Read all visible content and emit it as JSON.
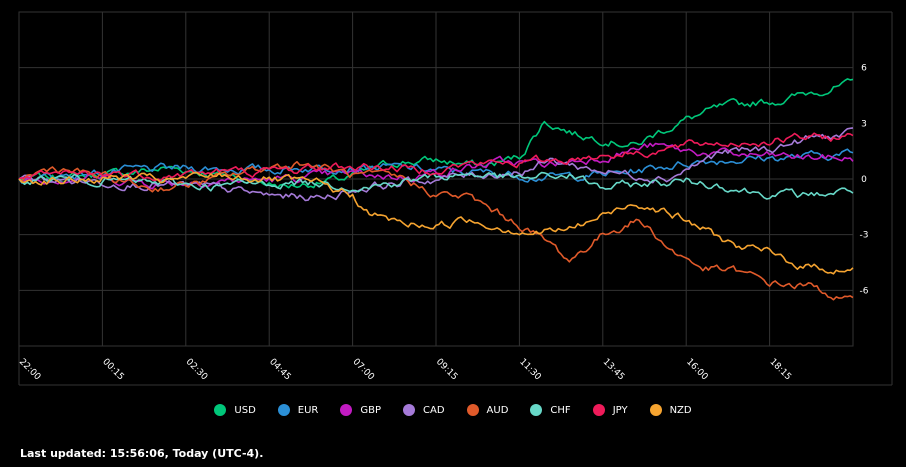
{
  "chart_data": {
    "type": "line",
    "x_ticks": [
      "22:00",
      "00:15",
      "02:30",
      "04:45",
      "07:00",
      "09:15",
      "11:30",
      "13:45",
      "16:00",
      "18:15"
    ],
    "y_ticks": [
      6,
      3,
      0,
      -3,
      -6
    ],
    "ylim": [
      -9,
      9
    ],
    "grid": true,
    "legend_position": "bottom",
    "series": [
      {
        "name": "USD",
        "color": "#00c77a",
        "anchors": [
          [
            0,
            0
          ],
          [
            0.05,
            0.1
          ],
          [
            0.12,
            0.3
          ],
          [
            0.18,
            0.6
          ],
          [
            0.25,
            0.2
          ],
          [
            0.32,
            -0.4
          ],
          [
            0.39,
            0
          ],
          [
            0.45,
            0.9
          ],
          [
            0.5,
            1
          ],
          [
            0.56,
            0.7
          ],
          [
            0.6,
            1.2
          ],
          [
            0.63,
            3.1
          ],
          [
            0.67,
            2.4
          ],
          [
            0.71,
            2.1
          ],
          [
            0.74,
            1.8
          ],
          [
            0.77,
            2.6
          ],
          [
            0.8,
            3.2
          ],
          [
            0.84,
            3.8
          ],
          [
            0.88,
            4.1
          ],
          [
            0.92,
            4.3
          ],
          [
            0.96,
            4.8
          ],
          [
            1,
            5.1
          ]
        ]
      },
      {
        "name": "EUR",
        "color": "#2b8fd6",
        "anchors": [
          [
            0,
            0
          ],
          [
            0.08,
            0.3
          ],
          [
            0.15,
            0.5
          ],
          [
            0.22,
            0.6
          ],
          [
            0.3,
            0.5
          ],
          [
            0.38,
            0.7
          ],
          [
            0.46,
            0.6
          ],
          [
            0.52,
            0.4
          ],
          [
            0.58,
            0.3
          ],
          [
            0.64,
            0.1
          ],
          [
            0.68,
            0.2
          ],
          [
            0.72,
            0.3
          ],
          [
            0.76,
            0.6
          ],
          [
            0.82,
            1
          ],
          [
            0.88,
            1.1
          ],
          [
            0.94,
            1.2
          ],
          [
            1,
            1.4
          ]
        ]
      },
      {
        "name": "GBP",
        "color": "#c21bc2",
        "anchors": [
          [
            0,
            0
          ],
          [
            0.08,
            0.1
          ],
          [
            0.16,
            -0.2
          ],
          [
            0.24,
            -0.1
          ],
          [
            0.32,
            0
          ],
          [
            0.4,
            0.3
          ],
          [
            0.46,
            0.1
          ],
          [
            0.52,
            0.5
          ],
          [
            0.58,
            0.9
          ],
          [
            0.64,
            0.8
          ],
          [
            0.7,
            1.2
          ],
          [
            0.76,
            1.8
          ],
          [
            0.8,
            1.5
          ],
          [
            0.86,
            1.3
          ],
          [
            0.92,
            1.2
          ],
          [
            1,
            1.1
          ]
        ]
      },
      {
        "name": "CAD",
        "color": "#a57ad8",
        "anchors": [
          [
            0,
            0
          ],
          [
            0.08,
            -0.1
          ],
          [
            0.16,
            -0.3
          ],
          [
            0.24,
            -0.5
          ],
          [
            0.3,
            -0.9
          ],
          [
            0.36,
            -1
          ],
          [
            0.42,
            -0.4
          ],
          [
            0.48,
            -0.1
          ],
          [
            0.54,
            0.2
          ],
          [
            0.6,
            0.4
          ],
          [
            0.64,
            1
          ],
          [
            0.68,
            0.6
          ],
          [
            0.72,
            0.3
          ],
          [
            0.78,
            0.1
          ],
          [
            0.84,
            1.4
          ],
          [
            0.9,
            1.6
          ],
          [
            0.95,
            2.2
          ],
          [
            1,
            2.4
          ]
        ]
      },
      {
        "name": "AUD",
        "color": "#e05a2a",
        "anchors": [
          [
            0,
            0
          ],
          [
            0.04,
            0.6
          ],
          [
            0.1,
            0.1
          ],
          [
            0.16,
            -0.5
          ],
          [
            0.22,
            -0.2
          ],
          [
            0.28,
            0.5
          ],
          [
            0.34,
            0.9
          ],
          [
            0.4,
            0.2
          ],
          [
            0.46,
            0
          ],
          [
            0.5,
            -0.8
          ],
          [
            0.54,
            -1
          ],
          [
            0.58,
            -2
          ],
          [
            0.61,
            -2.7
          ],
          [
            0.64,
            -3.6
          ],
          [
            0.66,
            -4.4
          ],
          [
            0.7,
            -3
          ],
          [
            0.74,
            -2.2
          ],
          [
            0.76,
            -2.8
          ],
          [
            0.78,
            -3.8
          ],
          [
            0.82,
            -4.8
          ],
          [
            0.86,
            -5
          ],
          [
            0.9,
            -5.6
          ],
          [
            0.95,
            -5.8
          ],
          [
            1,
            -6.7
          ]
        ]
      },
      {
        "name": "CHF",
        "color": "#67d8c8",
        "anchors": [
          [
            0,
            0
          ],
          [
            0.08,
            0
          ],
          [
            0.16,
            -0.2
          ],
          [
            0.24,
            -0.4
          ],
          [
            0.3,
            -0.2
          ],
          [
            0.36,
            -0.2
          ],
          [
            0.42,
            -0.4
          ],
          [
            0.48,
            0
          ],
          [
            0.54,
            0.3
          ],
          [
            0.6,
            0
          ],
          [
            0.66,
            0.2
          ],
          [
            0.7,
            -0.5
          ],
          [
            0.74,
            -0.3
          ],
          [
            0.8,
            -0.1
          ],
          [
            0.84,
            -0.3
          ],
          [
            0.88,
            -0.7
          ],
          [
            0.94,
            -0.9
          ],
          [
            1,
            -0.6
          ]
        ]
      },
      {
        "name": "JPY",
        "color": "#ef1b5a",
        "anchors": [
          [
            0,
            0
          ],
          [
            0.06,
            0.2
          ],
          [
            0.12,
            0.3
          ],
          [
            0.18,
            0.2
          ],
          [
            0.24,
            0.4
          ],
          [
            0.3,
            0.4
          ],
          [
            0.36,
            0.6
          ],
          [
            0.42,
            0.7
          ],
          [
            0.48,
            0.5
          ],
          [
            0.54,
            0.8
          ],
          [
            0.6,
            0.9
          ],
          [
            0.66,
            1.1
          ],
          [
            0.72,
            1.4
          ],
          [
            0.76,
            1.5
          ],
          [
            0.82,
            1.9
          ],
          [
            0.88,
            2
          ],
          [
            0.94,
            2.2
          ],
          [
            1,
            2.3
          ]
        ]
      },
      {
        "name": "NZD",
        "color": "#f6a430",
        "anchors": [
          [
            0,
            0
          ],
          [
            0.06,
            -0.1
          ],
          [
            0.12,
            0.1
          ],
          [
            0.18,
            -0.1
          ],
          [
            0.24,
            0.2
          ],
          [
            0.3,
            0
          ],
          [
            0.36,
            -0.3
          ],
          [
            0.4,
            -0.9
          ],
          [
            0.42,
            -1.9
          ],
          [
            0.46,
            -2.4
          ],
          [
            0.5,
            -2.5
          ],
          [
            0.54,
            -2.2
          ],
          [
            0.58,
            -2.6
          ],
          [
            0.62,
            -2.9
          ],
          [
            0.66,
            -2.7
          ],
          [
            0.7,
            -2
          ],
          [
            0.74,
            -1.2
          ],
          [
            0.78,
            -1.8
          ],
          [
            0.82,
            -2.7
          ],
          [
            0.86,
            -3.6
          ],
          [
            0.9,
            -4
          ],
          [
            0.94,
            -4.7
          ],
          [
            1,
            -4.9
          ]
        ]
      }
    ]
  },
  "footer": {
    "text": "Last updated: 15:56:06, Today (UTC-4)."
  }
}
